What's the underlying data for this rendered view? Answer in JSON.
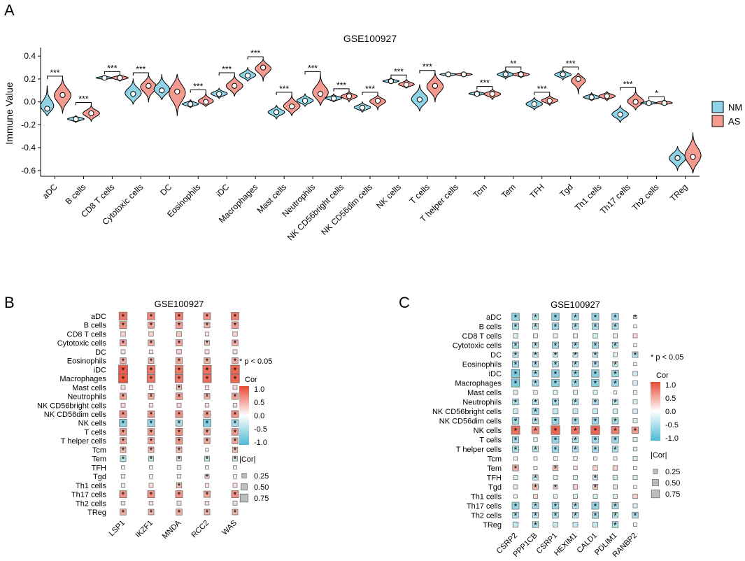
{
  "panels": {
    "a": "A",
    "b": "B",
    "c": "C"
  },
  "chart_data": [
    {
      "type": "violin",
      "title": "GSE100927",
      "ylabel": "Immune Value",
      "ylim": [
        -0.65,
        0.45
      ],
      "yticks": [
        -0.6,
        -0.4,
        -0.2,
        0.0,
        0.2,
        0.4
      ],
      "ytick_labels": [
        "-0.6",
        "-0.4",
        "-0.2",
        "0.0",
        "0.2",
        "0.4"
      ],
      "legend": {
        "placement": "right",
        "entries": [
          {
            "name": "NM",
            "color": "#8ed4e6"
          },
          {
            "name": "AS",
            "color": "#f49a90"
          }
        ]
      },
      "categories": [
        "aDC",
        "B cells",
        "CD8 T cells",
        "Cytotoxic cells",
        "DC",
        "Eosinophils",
        "iDC",
        "Macrophages",
        "Mast cells",
        "Neutrophils",
        "NK CD56bright cells",
        "NK CD56dim cells",
        "NK cells",
        "T cells",
        "T helper cells",
        "Tcm",
        "Tem",
        "TFH",
        "Tgd",
        "Th1 cells",
        "Th17 cells",
        "Th2 cells",
        "TReg"
      ],
      "series": [
        {
          "name": "NM",
          "median": [
            -0.06,
            -0.15,
            0.21,
            0.07,
            0.1,
            -0.02,
            0.07,
            0.23,
            -0.09,
            0.01,
            0.03,
            -0.05,
            0.18,
            0.02,
            0.24,
            0.07,
            0.24,
            -0.02,
            0.24,
            0.04,
            -0.11,
            -0.01,
            -0.49
          ],
          "range": [
            [
              -0.12,
              0.14
            ],
            [
              -0.18,
              -0.12
            ],
            [
              0.19,
              0.23
            ],
            [
              -0.02,
              0.2
            ],
            [
              0.02,
              0.24
            ],
            [
              -0.05,
              0.02
            ],
            [
              0.03,
              0.12
            ],
            [
              0.18,
              0.3
            ],
            [
              -0.15,
              -0.03
            ],
            [
              -0.04,
              0.07
            ],
            [
              0.0,
              0.07
            ],
            [
              -0.09,
              0.0
            ],
            [
              0.16,
              0.21
            ],
            [
              -0.08,
              0.15
            ],
            [
              0.22,
              0.26
            ],
            [
              0.05,
              0.1
            ],
            [
              0.2,
              0.28
            ],
            [
              -0.07,
              0.04
            ],
            [
              0.19,
              0.28
            ],
            [
              0.01,
              0.08
            ],
            [
              -0.18,
              -0.03
            ],
            [
              -0.03,
              0.01
            ],
            [
              -0.6,
              -0.39
            ]
          ]
        },
        {
          "name": "AS",
          "median": [
            0.06,
            -0.1,
            0.21,
            0.14,
            0.09,
            0.0,
            0.14,
            0.3,
            -0.04,
            0.07,
            0.05,
            0.01,
            0.15,
            0.14,
            0.24,
            0.07,
            0.24,
            0.01,
            0.2,
            0.05,
            0.0,
            -0.01,
            -0.48
          ],
          "range": [
            [
              -0.1,
              0.2
            ],
            [
              -0.17,
              -0.03
            ],
            [
              0.18,
              0.24
            ],
            [
              0.0,
              0.23
            ],
            [
              -0.12,
              0.24
            ],
            [
              -0.04,
              0.08
            ],
            [
              0.05,
              0.23
            ],
            [
              0.18,
              0.37
            ],
            [
              -0.12,
              0.06
            ],
            [
              -0.03,
              0.24
            ],
            [
              0.0,
              0.09
            ],
            [
              -0.07,
              0.06
            ],
            [
              0.12,
              0.2
            ],
            [
              0.0,
              0.25
            ],
            [
              0.22,
              0.26
            ],
            [
              0.02,
              0.11
            ],
            [
              0.21,
              0.27
            ],
            [
              -0.03,
              0.06
            ],
            [
              0.07,
              0.25
            ],
            [
              0.01,
              0.09
            ],
            [
              -0.07,
              0.1
            ],
            [
              -0.03,
              0.02
            ],
            [
              -0.62,
              -0.27
            ]
          ]
        }
      ],
      "significance": [
        "***",
        "***",
        "***",
        "***",
        "",
        "***",
        "***",
        "***",
        "***",
        "***",
        "***",
        "***",
        "***",
        "***",
        "",
        "***",
        "**",
        "***",
        "***",
        "",
        "***",
        "*",
        ""
      ]
    },
    {
      "type": "heatmap",
      "title": "GSE100927",
      "rows": [
        "aDC",
        "B cells",
        "CD8 T cells",
        "Cytotoxic cells",
        "DC",
        "Eosinophils",
        "iDC",
        "Macrophages",
        "Mast cells",
        "Neutrophils",
        "NK CD56bright cells",
        "NK CD56dim cells",
        "NK cells",
        "T cells",
        "T helper cells",
        "Tcm",
        "Tem",
        "TFH",
        "Tgd",
        "Th1 cells",
        "Th17 cells",
        "Th2 cells",
        "TReg"
      ],
      "columns": [
        "LSP1",
        "IKZF1",
        "MNDA",
        "RCC2",
        "WAS"
      ],
      "values": [
        [
          0.75,
          0.65,
          0.7,
          0.6,
          0.7
        ],
        [
          0.6,
          0.5,
          0.55,
          0.4,
          0.55
        ],
        [
          0.25,
          0.25,
          0.3,
          0.15,
          0.25
        ],
        [
          0.5,
          0.45,
          0.5,
          0.3,
          0.45
        ],
        [
          0.2,
          0.15,
          0.25,
          0.2,
          0.2
        ],
        [
          0.45,
          0.4,
          0.5,
          0.45,
          0.45
        ],
        [
          0.9,
          0.75,
          0.75,
          0.8,
          0.85
        ],
        [
          0.9,
          0.75,
          0.75,
          0.8,
          0.85
        ],
        [
          0.2,
          0.15,
          0.35,
          0.15,
          0.2
        ],
        [
          0.5,
          0.45,
          0.55,
          0.4,
          0.5
        ],
        [
          0.2,
          0.15,
          0.2,
          0.15,
          0.15
        ],
        [
          0.6,
          0.55,
          0.6,
          0.55,
          0.6
        ],
        [
          -0.65,
          -0.6,
          -0.5,
          -0.7,
          -0.55
        ],
        [
          0.55,
          0.55,
          0.6,
          0.5,
          0.55
        ],
        [
          0.5,
          0.5,
          0.55,
          0.45,
          0.45
        ],
        [
          0.4,
          0.4,
          0.4,
          0.05,
          0.35
        ],
        [
          -0.4,
          -0.3,
          -0.25,
          -0.3,
          -0.3
        ],
        [
          0.1,
          0.1,
          0.15,
          0.1,
          0.1
        ],
        [
          0.15,
          0.1,
          0.15,
          0.2,
          0.1
        ],
        [
          0.15,
          0.2,
          0.35,
          0.15,
          0.2
        ],
        [
          0.6,
          0.6,
          0.6,
          0.5,
          0.6
        ],
        [
          0.15,
          0.15,
          0.2,
          0.15,
          0.2
        ],
        [
          0.45,
          0.4,
          0.45,
          0.4,
          0.4
        ]
      ],
      "significant": [
        [
          1,
          1,
          1,
          1,
          1
        ],
        [
          1,
          1,
          1,
          1,
          1
        ],
        [
          0,
          0,
          0,
          0,
          0
        ],
        [
          1,
          1,
          1,
          1,
          1
        ],
        [
          0,
          0,
          0,
          0,
          0
        ],
        [
          1,
          1,
          1,
          1,
          1
        ],
        [
          1,
          1,
          1,
          1,
          1
        ],
        [
          1,
          1,
          1,
          1,
          1
        ],
        [
          0,
          0,
          1,
          0,
          0
        ],
        [
          1,
          1,
          1,
          1,
          1
        ],
        [
          0,
          0,
          0,
          0,
          0
        ],
        [
          1,
          1,
          1,
          1,
          1
        ],
        [
          1,
          1,
          1,
          1,
          1
        ],
        [
          1,
          1,
          1,
          1,
          1
        ],
        [
          1,
          1,
          1,
          1,
          1
        ],
        [
          1,
          1,
          1,
          0,
          1
        ],
        [
          1,
          1,
          1,
          1,
          1
        ],
        [
          0,
          0,
          0,
          0,
          0
        ],
        [
          0,
          0,
          0,
          1,
          0
        ],
        [
          0,
          0,
          1,
          0,
          0
        ],
        [
          1,
          1,
          1,
          1,
          1
        ],
        [
          0,
          0,
          0,
          0,
          0
        ],
        [
          1,
          1,
          1,
          1,
          1
        ]
      ],
      "legend": {
        "note": "* p < 0.05",
        "color_title": "Cor",
        "color_ticks": [
          "1.0",
          "0.5",
          "0.0",
          "-0.5",
          "-1.0"
        ],
        "size_title": "|Cor|",
        "size_ticks": [
          "0.25",
          "0.50",
          "0.75"
        ]
      }
    },
    {
      "type": "heatmap",
      "title": "GSE100927",
      "rows": [
        "aDC",
        "B cells",
        "CD8 T cells",
        "Cytotoxic cells",
        "DC",
        "Eosinophils",
        "iDC",
        "Macrophages",
        "Mast cells",
        "Neutrophils",
        "NK CD56bright cells",
        "NK CD56dim cells",
        "NK cells",
        "T cells",
        "T helper cells",
        "Tcm",
        "Tem",
        "TFH",
        "Tgd",
        "Th1 cells",
        "Th17 cells",
        "Th2 cells",
        "TReg"
      ],
      "columns": [
        "CSRP2",
        "PPP1CB",
        "CSRP1",
        "HEXIM1",
        "CALD1",
        "PDLIM1",
        "RANBP2"
      ],
      "values": [
        [
          -0.65,
          -0.45,
          -0.65,
          -0.55,
          -0.6,
          -0.55,
          -0.1
        ],
        [
          -0.5,
          -0.4,
          -0.55,
          -0.45,
          -0.5,
          -0.5,
          -0.05
        ],
        [
          -0.25,
          -0.2,
          -0.2,
          -0.2,
          -0.25,
          -0.2,
          0.2
        ],
        [
          -0.5,
          -0.4,
          -0.5,
          -0.45,
          -0.5,
          -0.45,
          -0.05
        ],
        [
          -0.4,
          -0.35,
          -0.3,
          -0.3,
          -0.35,
          -0.2,
          -0.4
        ],
        [
          -0.5,
          -0.45,
          -0.45,
          -0.4,
          -0.45,
          -0.35,
          -0.05
        ],
        [
          -0.75,
          -0.5,
          -0.65,
          -0.55,
          -0.65,
          -0.55,
          -0.25
        ],
        [
          -0.75,
          -0.5,
          -0.65,
          -0.55,
          -0.65,
          -0.55,
          -0.25
        ],
        [
          -0.2,
          -0.15,
          -0.2,
          -0.2,
          -0.2,
          -0.05,
          -0.15
        ],
        [
          -0.45,
          -0.4,
          -0.5,
          -0.45,
          -0.45,
          -0.4,
          -0.2
        ],
        [
          -0.3,
          -0.55,
          -0.35,
          -0.3,
          -0.3,
          -0.25,
          -0.25
        ],
        [
          -0.55,
          -0.45,
          -0.6,
          -0.5,
          -0.55,
          -0.5,
          -0.2
        ],
        [
          0.8,
          0.65,
          0.85,
          0.75,
          0.85,
          0.7,
          0.55
        ],
        [
          -0.5,
          -0.15,
          -0.6,
          -0.45,
          -0.55,
          -0.55,
          -0.2
        ],
        [
          -0.5,
          -0.4,
          -0.55,
          -0.45,
          -0.5,
          -0.45,
          -0.15
        ],
        [
          -0.1,
          -0.1,
          -0.15,
          -0.15,
          -0.1,
          -0.1,
          -0.2
        ],
        [
          0.45,
          0.1,
          0.35,
          0.15,
          0.25,
          0.25,
          -0.1
        ],
        [
          -0.2,
          -0.35,
          -0.2,
          -0.2,
          -0.3,
          -0.25,
          -0.2
        ],
        [
          -0.2,
          0.4,
          0.2,
          0.25,
          0.3,
          0.2,
          -0.05
        ],
        [
          -0.1,
          0.2,
          -0.15,
          -0.2,
          -0.2,
          -0.2,
          0.25
        ],
        [
          -0.6,
          -0.5,
          -0.55,
          -0.45,
          -0.6,
          -0.5,
          -0.2
        ],
        [
          -0.45,
          -0.4,
          -0.45,
          -0.4,
          -0.5,
          -0.4,
          -0.45
        ],
        [
          -0.35,
          -0.45,
          -0.3,
          -0.3,
          -0.3,
          -0.45,
          -0.1
        ]
      ],
      "significant": [
        [
          1,
          1,
          1,
          1,
          1,
          1,
          1
        ],
        [
          1,
          1,
          1,
          1,
          1,
          1,
          0
        ],
        [
          0,
          0,
          0,
          0,
          0,
          0,
          0
        ],
        [
          1,
          1,
          1,
          1,
          1,
          1,
          0
        ],
        [
          1,
          1,
          1,
          1,
          1,
          0,
          1
        ],
        [
          1,
          1,
          1,
          1,
          1,
          1,
          0
        ],
        [
          1,
          1,
          1,
          1,
          1,
          1,
          0
        ],
        [
          1,
          1,
          1,
          1,
          1,
          1,
          0
        ],
        [
          0,
          0,
          0,
          0,
          0,
          0,
          0
        ],
        [
          1,
          1,
          1,
          1,
          1,
          1,
          0
        ],
        [
          0,
          1,
          0,
          0,
          0,
          0,
          0
        ],
        [
          1,
          1,
          1,
          1,
          1,
          1,
          0
        ],
        [
          1,
          1,
          1,
          1,
          1,
          1,
          1
        ],
        [
          1,
          0,
          1,
          1,
          1,
          1,
          0
        ],
        [
          1,
          1,
          1,
          1,
          1,
          1,
          0
        ],
        [
          0,
          0,
          0,
          0,
          0,
          0,
          0
        ],
        [
          1,
          0,
          1,
          0,
          0,
          0,
          0
        ],
        [
          0,
          1,
          0,
          0,
          1,
          0,
          0
        ],
        [
          0,
          1,
          1,
          0,
          1,
          0,
          0
        ],
        [
          0,
          0,
          0,
          0,
          0,
          0,
          0
        ],
        [
          1,
          1,
          1,
          1,
          1,
          1,
          0
        ],
        [
          1,
          1,
          1,
          1,
          1,
          1,
          1
        ],
        [
          0,
          1,
          0,
          0,
          0,
          1,
          0
        ]
      ],
      "legend": {
        "note": "* p < 0.05",
        "color_title": "Cor",
        "color_ticks": [
          "1.0",
          "0.5",
          "0.0",
          "-0.5",
          "-1.0"
        ],
        "size_title": "|Cor|",
        "size_ticks": [
          "0.25",
          "0.50",
          "0.75"
        ]
      }
    }
  ]
}
